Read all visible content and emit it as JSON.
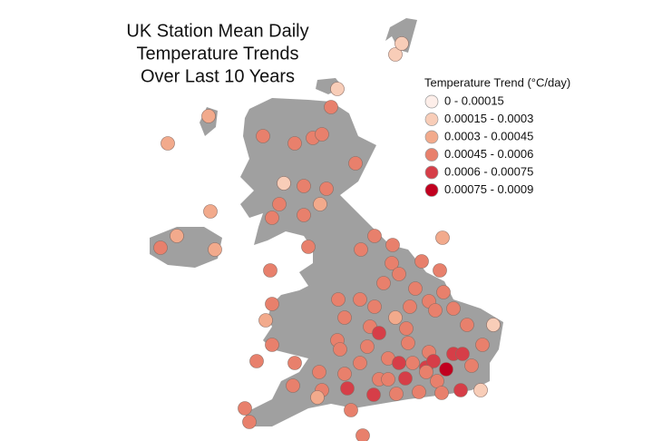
{
  "title": [
    "UK Station Mean Daily",
    "Temperature Trends",
    "Over Last 10 Years"
  ],
  "legend": {
    "title": "Temperature Trend (°C/day)",
    "items": [
      {
        "label": "0 - 0.00015",
        "color": "#fdeee9"
      },
      {
        "label": "0.00015 - 0.0003",
        "color": "#f8cdb8"
      },
      {
        "label": "0.0003 - 0.00045",
        "color": "#f2aa8c"
      },
      {
        "label": "0.00045 - 0.0006",
        "color": "#e8806c"
      },
      {
        "label": "0.0006 - 0.00075",
        "color": "#d63e48"
      },
      {
        "label": "0.00075 - 0.0009",
        "color": "#c1001f"
      }
    ]
  },
  "stations": [
    2,
    2,
    3,
    3,
    3,
    3,
    3,
    3,
    1,
    1,
    1,
    1,
    3,
    3,
    2,
    3,
    3,
    3,
    2,
    2,
    3,
    2,
    3,
    3,
    3,
    2,
    3,
    3,
    3,
    3,
    3,
    3,
    3,
    3,
    3,
    3,
    2,
    3,
    3,
    3,
    3,
    3,
    3,
    3,
    3,
    3,
    2,
    3,
    3,
    1,
    4,
    3,
    3,
    3,
    4,
    4,
    3,
    3,
    3,
    3,
    3,
    3,
    3,
    3,
    3,
    3,
    4,
    3,
    4,
    4,
    5,
    3,
    3,
    3,
    4,
    3,
    3,
    4,
    1,
    3,
    3,
    2,
    4,
    4,
    3,
    3,
    3,
    3,
    3,
    3,
    3
  ]
}
